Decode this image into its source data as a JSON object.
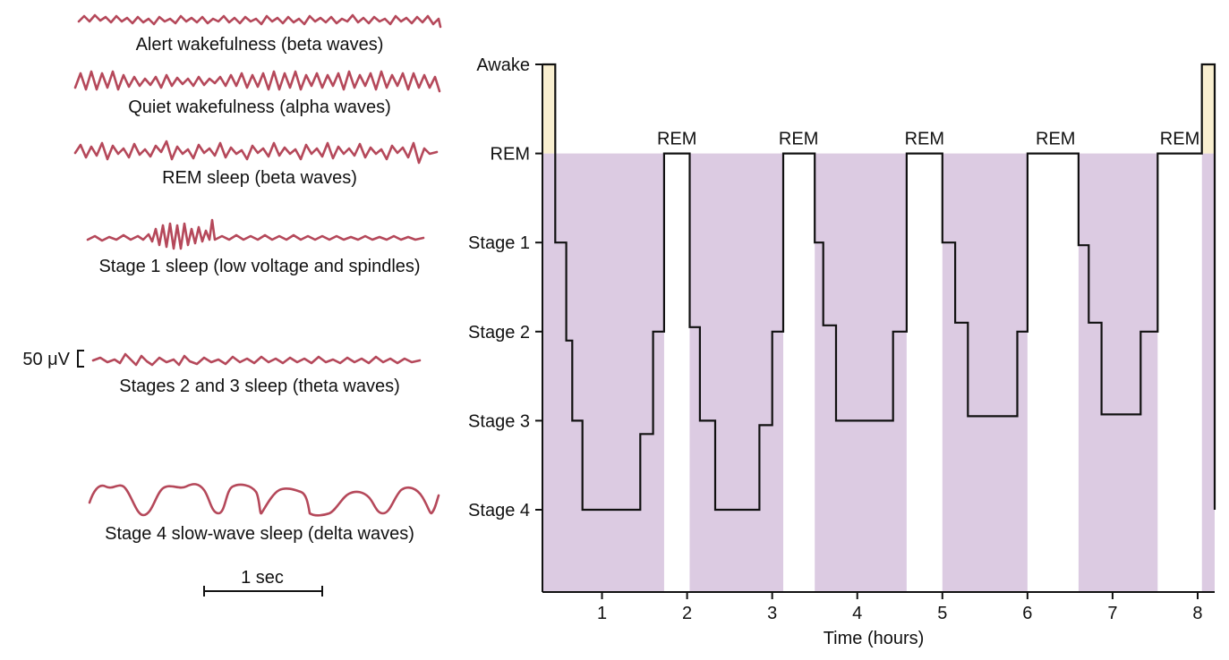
{
  "colors": {
    "eeg_trace": "#b5485a",
    "sleep_fill": "#dccbe2",
    "awake_fill": "#f9efd0",
    "line": "#111111"
  },
  "eeg_panel": {
    "traces": [
      {
        "label": "Alert wakefulness (beta waves)",
        "pattern": "beta-low-amplitude"
      },
      {
        "label": "Quiet wakefulness (alpha waves)",
        "pattern": "alpha-high-amplitude"
      },
      {
        "label": "REM sleep (beta waves)",
        "pattern": "beta-irregular"
      },
      {
        "label": "Stage 1 sleep (low voltage and spindles)",
        "pattern": "low-voltage-with-spindles"
      },
      {
        "label": "Stages 2 and 3 sleep (theta waves)",
        "pattern": "theta"
      },
      {
        "label": "Stage 4 slow-wave sleep (delta waves)",
        "pattern": "delta"
      }
    ],
    "voltage_scale_label": "50 μV",
    "time_scale_label": "1 sec"
  },
  "chart_data": {
    "type": "line",
    "title": "",
    "xlabel": "Time (hours)",
    "xlim": [
      0.3,
      8.2
    ],
    "xticks": [
      1,
      2,
      3,
      4,
      5,
      6,
      7,
      8
    ],
    "ylevels": [
      "Awake",
      "REM",
      "Stage 1",
      "Stage 2",
      "Stage 3",
      "Stage 4"
    ],
    "ylevel_values": {
      "Awake": 6,
      "REM": 5,
      "Stage 1": 4,
      "Stage 2": 3,
      "Stage 3": 2,
      "Stage 4": 1
    },
    "series": [
      {
        "step_points": [
          [
            0.3,
            6
          ],
          [
            0.45,
            6
          ],
          [
            0.45,
            5
          ],
          [
            0.45,
            4
          ],
          [
            0.58,
            4
          ],
          [
            0.58,
            2.9
          ],
          [
            0.65,
            2.9
          ],
          [
            0.65,
            2
          ],
          [
            0.77,
            2
          ],
          [
            0.77,
            1
          ],
          [
            1.45,
            1
          ],
          [
            1.45,
            1.85
          ],
          [
            1.6,
            1.85
          ],
          [
            1.6,
            3
          ],
          [
            1.73,
            3
          ],
          [
            1.73,
            5
          ],
          [
            2.03,
            5
          ],
          [
            2.03,
            3.05
          ],
          [
            2.15,
            3.05
          ],
          [
            2.15,
            2
          ],
          [
            2.33,
            2
          ],
          [
            2.33,
            1
          ],
          [
            2.85,
            1
          ],
          [
            2.85,
            1.95
          ],
          [
            3.0,
            1.95
          ],
          [
            3.0,
            3
          ],
          [
            3.13,
            3
          ],
          [
            3.13,
            5
          ],
          [
            3.5,
            5
          ],
          [
            3.5,
            4
          ],
          [
            3.6,
            4
          ],
          [
            3.6,
            3.07
          ],
          [
            3.75,
            3.07
          ],
          [
            3.75,
            2
          ],
          [
            4.42,
            2
          ],
          [
            4.42,
            3
          ],
          [
            4.58,
            3
          ],
          [
            4.58,
            5
          ],
          [
            5.0,
            5
          ],
          [
            5.0,
            4
          ],
          [
            5.15,
            4
          ],
          [
            5.15,
            3.1
          ],
          [
            5.3,
            3.1
          ],
          [
            5.3,
            2.05
          ],
          [
            5.88,
            2.05
          ],
          [
            5.88,
            3
          ],
          [
            6.0,
            3
          ],
          [
            6.0,
            5
          ],
          [
            6.6,
            5
          ],
          [
            6.6,
            3.97
          ],
          [
            6.72,
            3.97
          ],
          [
            6.72,
            3.1
          ],
          [
            6.87,
            3.1
          ],
          [
            6.87,
            2.07
          ],
          [
            7.33,
            2.07
          ],
          [
            7.33,
            3
          ],
          [
            7.53,
            3
          ],
          [
            7.53,
            5
          ],
          [
            8.05,
            5
          ],
          [
            8.05,
            6
          ],
          [
            8.2,
            6
          ],
          [
            8.2,
            1
          ]
        ]
      }
    ],
    "shading": {
      "awake_intervals": [
        [
          0.3,
          0.45
        ],
        [
          8.05,
          8.2
        ]
      ],
      "sleep_intervals": [
        [
          0.3,
          1.73
        ],
        [
          2.03,
          3.13
        ],
        [
          3.5,
          4.58
        ],
        [
          5.0,
          6.0
        ],
        [
          6.6,
          7.53
        ],
        [
          8.05,
          8.2
        ]
      ],
      "rem_intervals": [
        [
          1.73,
          2.03
        ],
        [
          3.13,
          3.5
        ],
        [
          4.58,
          5.0
        ],
        [
          6.0,
          6.6
        ],
        [
          7.53,
          8.05
        ]
      ]
    },
    "rem_labels": [
      {
        "text": "REM",
        "x": 1.88
      },
      {
        "text": "REM",
        "x": 3.31
      },
      {
        "text": "REM",
        "x": 4.79
      },
      {
        "text": "REM",
        "x": 6.33
      },
      {
        "text": "REM",
        "x": 7.79
      }
    ],
    "grid": false,
    "legend": "none"
  }
}
